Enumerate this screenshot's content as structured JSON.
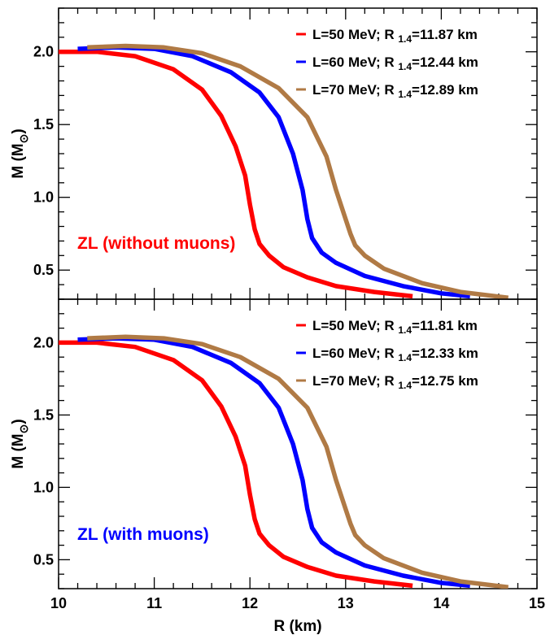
{
  "chart_data": [
    {
      "type": "line",
      "panel": "top",
      "annotation": "ZL (without muons)",
      "annotation_color": "#ff0000",
      "ylabel": {
        "base": "M (M",
        "sub": "⊙",
        "close": ")"
      },
      "xlim": [
        10,
        15
      ],
      "ylim": [
        0.3,
        2.3
      ],
      "yticks": [
        "2.0",
        "1.5",
        "1.0",
        "0.5"
      ],
      "legend_position": "top-right",
      "series": [
        {
          "label_main": "L=50 MeV; R ",
          "label_sub": "1.4",
          "label_value": "=11.87 km",
          "color": "#ff0000",
          "x": [
            10.0,
            10.4,
            10.8,
            11.2,
            11.5,
            11.7,
            11.85,
            11.95,
            12.0,
            12.05,
            12.1,
            12.2,
            12.35,
            12.6,
            12.9,
            13.3,
            13.7
          ],
          "y": [
            2.0,
            2.0,
            1.97,
            1.88,
            1.74,
            1.56,
            1.35,
            1.15,
            0.95,
            0.78,
            0.68,
            0.6,
            0.52,
            0.45,
            0.39,
            0.35,
            0.32
          ]
        },
        {
          "label_main": "L=60 MeV; R ",
          "label_sub": "1.4",
          "label_value": "=12.44 km",
          "color": "#0000ff",
          "x": [
            10.2,
            10.6,
            11.0,
            11.4,
            11.8,
            12.1,
            12.3,
            12.45,
            12.55,
            12.6,
            12.65,
            12.75,
            12.9,
            13.2,
            13.6,
            14.0,
            14.3
          ],
          "y": [
            2.02,
            2.03,
            2.02,
            1.97,
            1.86,
            1.72,
            1.55,
            1.3,
            1.05,
            0.85,
            0.72,
            0.62,
            0.55,
            0.46,
            0.39,
            0.34,
            0.32
          ]
        },
        {
          "label_main": "L=70 MeV; R ",
          "label_sub": "1.4",
          "label_value": "=12.89 km",
          "color": "#b07a45",
          "x": [
            10.3,
            10.7,
            11.1,
            11.5,
            11.9,
            12.3,
            12.6,
            12.8,
            12.9,
            13.0,
            13.05,
            13.1,
            13.2,
            13.4,
            13.8,
            14.2,
            14.7
          ],
          "y": [
            2.03,
            2.04,
            2.03,
            1.99,
            1.9,
            1.75,
            1.55,
            1.28,
            1.05,
            0.85,
            0.75,
            0.67,
            0.6,
            0.51,
            0.41,
            0.35,
            0.31
          ]
        }
      ]
    },
    {
      "type": "line",
      "panel": "bottom",
      "annotation": "ZL (with muons)",
      "annotation_color": "#0000ff",
      "xlabel": "R (km)",
      "ylabel": {
        "base": "M (M",
        "sub": "⊙",
        "close": ")"
      },
      "xlim": [
        10,
        15
      ],
      "ylim": [
        0.3,
        2.3
      ],
      "xticks": [
        "10",
        "11",
        "12",
        "13",
        "14",
        "15"
      ],
      "yticks": [
        "2.0",
        "1.5",
        "1.0",
        "0.5"
      ],
      "legend_position": "top-right",
      "series": [
        {
          "label_main": "L=50 MeV; R ",
          "label_sub": "1.4",
          "label_value": "=11.81 km",
          "color": "#ff0000",
          "x": [
            10.0,
            10.4,
            10.8,
            11.2,
            11.5,
            11.7,
            11.85,
            11.95,
            12.0,
            12.05,
            12.1,
            12.2,
            12.35,
            12.6,
            12.9,
            13.3,
            13.7
          ],
          "y": [
            2.0,
            2.0,
            1.97,
            1.88,
            1.74,
            1.56,
            1.35,
            1.15,
            0.95,
            0.78,
            0.68,
            0.6,
            0.52,
            0.45,
            0.39,
            0.35,
            0.32
          ]
        },
        {
          "label_main": "L=60 MeV; R ",
          "label_sub": "1.4",
          "label_value": "=12.33 km",
          "color": "#0000ff",
          "x": [
            10.2,
            10.6,
            11.0,
            11.4,
            11.8,
            12.1,
            12.3,
            12.45,
            12.55,
            12.6,
            12.65,
            12.75,
            12.9,
            13.2,
            13.6,
            14.0,
            14.3
          ],
          "y": [
            2.02,
            2.03,
            2.02,
            1.97,
            1.86,
            1.72,
            1.55,
            1.3,
            1.05,
            0.85,
            0.72,
            0.62,
            0.55,
            0.46,
            0.39,
            0.34,
            0.32
          ]
        },
        {
          "label_main": "L=70 MeV; R ",
          "label_sub": "1.4",
          "label_value": "=12.75 km",
          "color": "#b07a45",
          "x": [
            10.3,
            10.7,
            11.1,
            11.5,
            11.9,
            12.3,
            12.6,
            12.8,
            12.9,
            13.0,
            13.05,
            13.1,
            13.2,
            13.4,
            13.8,
            14.2,
            14.7
          ],
          "y": [
            2.03,
            2.04,
            2.03,
            1.99,
            1.9,
            1.75,
            1.55,
            1.28,
            1.05,
            0.85,
            0.75,
            0.67,
            0.6,
            0.51,
            0.41,
            0.35,
            0.31
          ]
        }
      ]
    }
  ]
}
